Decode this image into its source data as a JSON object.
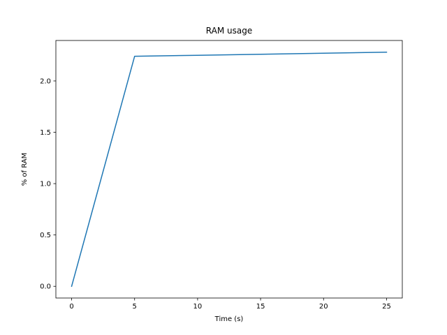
{
  "chart_data": {
    "type": "line",
    "title": "RAM usage",
    "xlabel": "Time (s)",
    "ylabel": "% of RAM",
    "xlim": [
      -1.25,
      26.25
    ],
    "ylim": [
      -0.114,
      2.394
    ],
    "xticks": [
      0,
      5,
      10,
      15,
      20,
      25
    ],
    "xtick_labels": [
      "0",
      "5",
      "10",
      "15",
      "20",
      "25"
    ],
    "yticks": [
      0.0,
      0.5,
      1.0,
      1.5,
      2.0
    ],
    "ytick_labels": [
      "0.0",
      "0.5",
      "1.0",
      "1.5",
      "2.0"
    ],
    "grid": false,
    "legend": "none",
    "series": [
      {
        "color": "#1f77b4",
        "x": [
          0,
          5,
          10,
          15,
          20,
          25
        ],
        "y": [
          0.0,
          2.24,
          2.25,
          2.26,
          2.27,
          2.28
        ]
      }
    ]
  }
}
